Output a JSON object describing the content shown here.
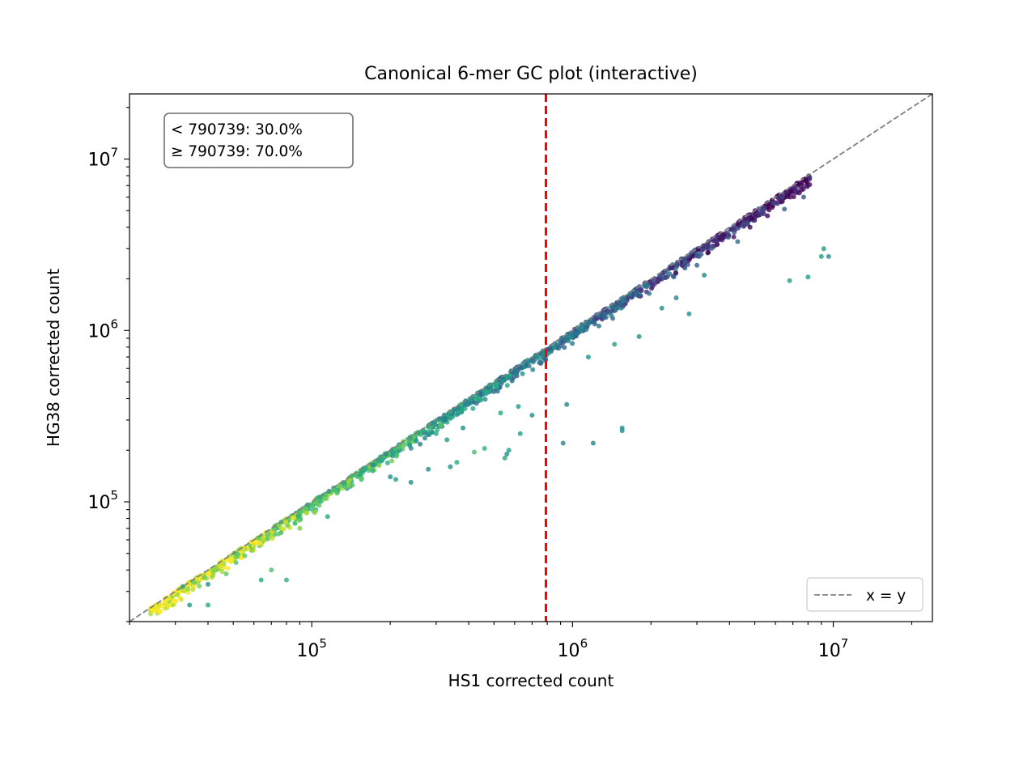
{
  "chart_data": {
    "type": "scatter",
    "title": "Canonical 6-mer GC plot (interactive)",
    "xlabel": "HS1 corrected count",
    "ylabel": "HG38 corrected count",
    "xscale": "log",
    "yscale": "log",
    "xlim": [
      20000,
      24000000
    ],
    "ylim": [
      20000,
      24000000
    ],
    "x_ticks": [
      {
        "base": "10",
        "exp": "5",
        "value": 100000
      },
      {
        "base": "10",
        "exp": "6",
        "value": 1000000
      },
      {
        "base": "10",
        "exp": "7",
        "value": 10000000
      }
    ],
    "y_ticks": [
      {
        "base": "10",
        "exp": "5",
        "value": 100000
      },
      {
        "base": "10",
        "exp": "6",
        "value": 1000000
      },
      {
        "base": "10",
        "exp": "7",
        "value": 10000000
      }
    ],
    "threshold": {
      "value": 790739,
      "color": "#ff0000",
      "style": "dashed"
    },
    "annotation": {
      "lines": [
        "< 790739: 30.0%",
        "≥ 790739: 70.0%"
      ],
      "placement": "top-left"
    },
    "legend": {
      "entries": [
        {
          "label": "x = y",
          "style": "dashed",
          "color": "#808080"
        }
      ],
      "placement": "lower-right"
    },
    "colormap": "viridis",
    "grid": false,
    "outlier_points": [
      [
        34000,
        25000,
        0.55
      ],
      [
        40000,
        25000,
        0.6
      ],
      [
        32000,
        32000,
        0.55
      ],
      [
        40000,
        33000,
        0.5
      ],
      [
        47000,
        38000,
        0.75
      ],
      [
        64000,
        35000,
        0.6
      ],
      [
        80000,
        35000,
        0.65
      ],
      [
        70000,
        40000,
        0.7
      ],
      [
        90000,
        70000,
        0.8
      ],
      [
        115000,
        82000,
        0.6
      ],
      [
        200000,
        140000,
        0.5
      ],
      [
        210000,
        135000,
        0.55
      ],
      [
        240000,
        130000,
        0.5
      ],
      [
        280000,
        155000,
        0.5
      ],
      [
        340000,
        160000,
        0.5
      ],
      [
        360000,
        170000,
        0.6
      ],
      [
        560000,
        190000,
        0.5
      ],
      [
        570000,
        200000,
        0.55
      ],
      [
        550000,
        180000,
        0.6
      ],
      [
        420000,
        195000,
        0.7
      ],
      [
        460000,
        205000,
        0.65
      ],
      [
        330000,
        230000,
        0.55
      ],
      [
        300000,
        250000,
        0.6
      ],
      [
        380000,
        270000,
        0.5
      ],
      [
        630000,
        250000,
        0.55
      ],
      [
        700000,
        320000,
        0.5
      ],
      [
        530000,
        330000,
        0.6
      ],
      [
        620000,
        360000,
        0.55
      ],
      [
        920000,
        220000,
        0.45
      ],
      [
        950000,
        370000,
        0.45
      ],
      [
        1200000,
        220000,
        0.45
      ],
      [
        1550000,
        260000,
        0.5
      ],
      [
        1550000,
        270000,
        0.5
      ],
      [
        1150000,
        700000,
        0.5
      ],
      [
        1450000,
        830000,
        0.55
      ],
      [
        1800000,
        920000,
        0.5
      ],
      [
        2200000,
        1350000,
        0.5
      ],
      [
        2800000,
        1250000,
        0.5
      ],
      [
        2500000,
        1550000,
        0.45
      ],
      [
        3200000,
        2100000,
        0.45
      ],
      [
        6800000,
        1950000,
        0.55
      ],
      [
        8000000,
        2050000,
        0.55
      ],
      [
        9200000,
        3000000,
        0.55
      ],
      [
        9600000,
        2700000,
        0.5
      ],
      [
        9000000,
        2700000,
        0.55
      ],
      [
        4300000,
        3300000,
        0.35
      ],
      [
        6500000,
        5100000,
        0.3
      ],
      [
        7700000,
        6000000,
        0.25
      ],
      [
        3000000,
        2400000,
        0.3
      ]
    ]
  }
}
